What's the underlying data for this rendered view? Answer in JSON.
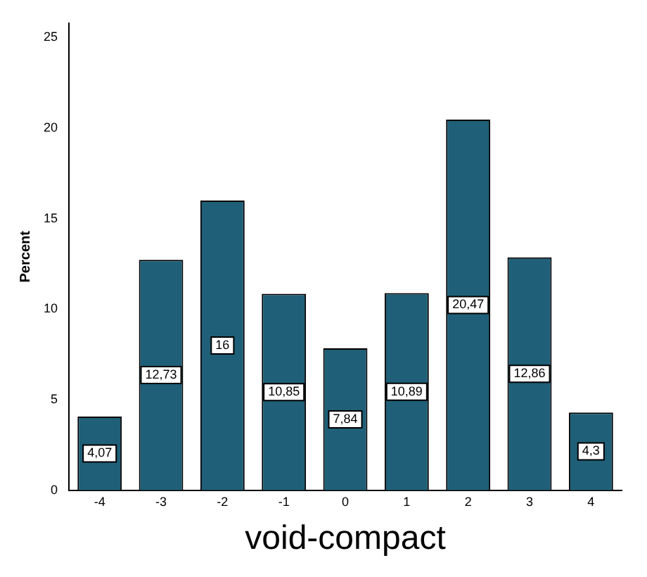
{
  "chart_data": {
    "type": "bar",
    "xlabel": "void-compact",
    "ylabel": "Percent",
    "categories": [
      "-4",
      "-3",
      "-2",
      "-1",
      "0",
      "1",
      "2",
      "3",
      "4"
    ],
    "values": [
      4.07,
      12.73,
      16,
      10.85,
      7.84,
      10.89,
      20.47,
      12.86,
      4.3
    ],
    "value_labels": [
      "4,07",
      "12,73",
      "16",
      "10,85",
      "7,84",
      "10,89",
      "20,47",
      "12,86",
      "4,3"
    ],
    "color": "#1f5f78",
    "ylim": [
      0,
      25.8
    ],
    "yticks": [
      0,
      5,
      10,
      15,
      20,
      25
    ],
    "grid": false,
    "legend": false
  }
}
